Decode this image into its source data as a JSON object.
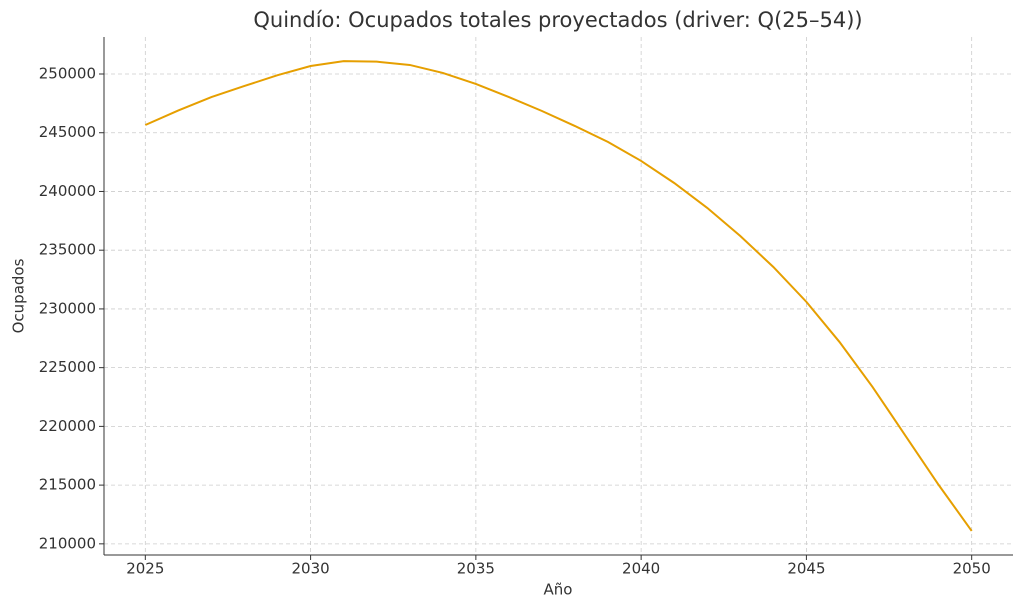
{
  "chart_data": {
    "type": "line",
    "title": "Quindío: Ocupados totales proyectados (driver: Q(25–54))",
    "x_label": "Año",
    "y_label": "Ocupados",
    "x": [
      2025,
      2026,
      2027,
      2028,
      2029,
      2030,
      2031,
      2032,
      2033,
      2034,
      2035,
      2036,
      2037,
      2038,
      2039,
      2040,
      2041,
      2042,
      2043,
      2044,
      2045,
      2046,
      2047,
      2048,
      2049,
      2050
    ],
    "series": [
      {
        "name": "Ocupados",
        "color": "#e69f00",
        "values": [
          245660,
          246900,
          248040,
          248980,
          249900,
          250680,
          251100,
          251050,
          250770,
          250090,
          249150,
          248040,
          246850,
          245570,
          244210,
          242600,
          240720,
          238600,
          236210,
          233570,
          230600,
          227190,
          223360,
          219190,
          215020,
          211100
        ]
      }
    ],
    "xlim": [
      2023.75,
      2051.25
    ],
    "xticks": [
      2025,
      2030,
      2035,
      2040,
      2045,
      2050
    ],
    "ylim": [
      209050,
      253150
    ],
    "yticks": [
      210000,
      215000,
      220000,
      225000,
      230000,
      235000,
      240000,
      245000,
      250000
    ],
    "grid": true
  }
}
